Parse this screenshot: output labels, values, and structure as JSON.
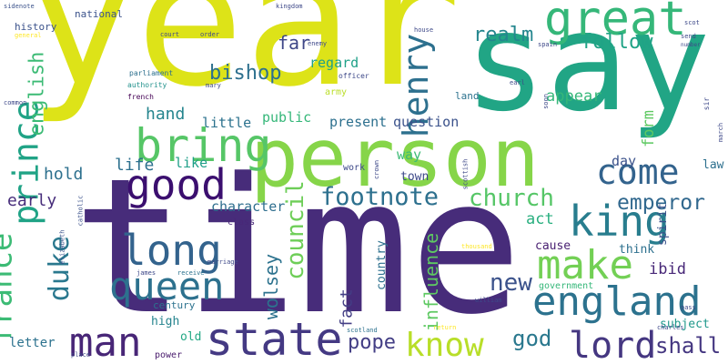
{
  "words": [
    {
      "text": "year",
      "color": "#dde318"
    },
    {
      "text": "say",
      "color": "#21a585"
    },
    {
      "text": "time",
      "color": "#472c7a"
    },
    {
      "text": "person",
      "color": "#86d549"
    },
    {
      "text": "great",
      "color": "#35b779"
    },
    {
      "text": "bring",
      "color": "#56c667"
    },
    {
      "text": "good",
      "color": "#3b0f6f"
    },
    {
      "text": "king",
      "color": "#287d8e"
    },
    {
      "text": "come",
      "color": "#33638d"
    },
    {
      "text": "long",
      "color": "#33638d"
    },
    {
      "text": "queen",
      "color": "#2d718e"
    },
    {
      "text": "prince",
      "color": "#20a386"
    },
    {
      "text": "henry",
      "color": "#2d708e"
    },
    {
      "text": "england",
      "color": "#2c728e"
    },
    {
      "text": "make",
      "color": "#73d055"
    },
    {
      "text": "man",
      "color": "#482677"
    },
    {
      "text": "state",
      "color": "#443983"
    },
    {
      "text": "know",
      "color": "#b8de29"
    },
    {
      "text": "lord",
      "color": "#453781"
    },
    {
      "text": "france",
      "color": "#3cbb75"
    },
    {
      "text": "duke",
      "color": "#2a788e"
    },
    {
      "text": "footnote",
      "color": "#2d708e"
    },
    {
      "text": "church",
      "color": "#56c667"
    },
    {
      "text": "emperor",
      "color": "#31688e"
    },
    {
      "text": "bishop",
      "color": "#2d708e"
    },
    {
      "text": "realm",
      "color": "#24868e"
    },
    {
      "text": "follow",
      "color": "#20a386"
    },
    {
      "text": "english",
      "color": "#3cbb75"
    },
    {
      "text": "council",
      "color": "#6ece58"
    },
    {
      "text": "new",
      "color": "#3b528b"
    },
    {
      "text": "pope",
      "color": "#433e85"
    },
    {
      "text": "god",
      "color": "#2a788e"
    },
    {
      "text": "shall",
      "color": "#453781"
    },
    {
      "text": "hand",
      "color": "#25858e"
    },
    {
      "text": "far",
      "color": "#3f4788"
    },
    {
      "text": "life",
      "color": "#2d708e"
    },
    {
      "text": "hold",
      "color": "#2d708e"
    },
    {
      "text": "early",
      "color": "#472d7b"
    },
    {
      "text": "wolsey",
      "color": "#2c728e"
    },
    {
      "text": "influence",
      "color": "#5ec962"
    },
    {
      "text": "fact",
      "color": "#433e85"
    },
    {
      "text": "act",
      "color": "#29af7f"
    },
    {
      "text": "ibid",
      "color": "#482878"
    },
    {
      "text": "form",
      "color": "#5ec962"
    },
    {
      "text": "appear",
      "color": "#35b779"
    },
    {
      "text": "question",
      "color": "#3b528b"
    },
    {
      "text": "present",
      "color": "#2d708e"
    },
    {
      "text": "public",
      "color": "#35b779"
    },
    {
      "text": "little",
      "color": "#2c728e"
    },
    {
      "text": "regard",
      "color": "#1fa188"
    },
    {
      "text": "english2",
      "color": "#3cbb75"
    },
    {
      "text": "character",
      "color": "#2e6e8e"
    },
    {
      "text": "like",
      "color": "#1f9f88"
    },
    {
      "text": "way",
      "color": "#3cbb75"
    },
    {
      "text": "town",
      "color": "#3e4989"
    },
    {
      "text": "day",
      "color": "#3b528b"
    },
    {
      "text": "law",
      "color": "#2d708e"
    },
    {
      "text": "spirit",
      "color": "#3b528b"
    },
    {
      "text": "subject",
      "color": "#1f988b"
    },
    {
      "text": "letter",
      "color": "#2c728e"
    },
    {
      "text": "high",
      "color": "#25848e"
    },
    {
      "text": "old",
      "color": "#22a884"
    },
    {
      "text": "country",
      "color": "#2d708e"
    },
    {
      "text": "cause",
      "color": "#481f71"
    },
    {
      "text": "think",
      "color": "#2d708e"
    },
    {
      "text": "government",
      "color": "#35b779"
    },
    {
      "text": "history",
      "color": "#3b528b"
    },
    {
      "text": "national",
      "color": "#3b528b"
    },
    {
      "text": "land",
      "color": "#2c728e"
    },
    {
      "text": "army",
      "color": "#bade28"
    },
    {
      "text": "officer",
      "color": "#3e4989"
    },
    {
      "text": "authority",
      "color": "#21918c"
    },
    {
      "text": "french",
      "color": "#440154"
    },
    {
      "text": "parliament",
      "color": "#2d708e"
    },
    {
      "text": "century",
      "color": "#2c728e"
    },
    {
      "text": "class",
      "color": "#482878"
    },
    {
      "text": "work",
      "color": "#3e4989"
    },
    {
      "text": "power",
      "color": "#481a6c"
    },
    {
      "text": "general",
      "color": "#fde725"
    },
    {
      "text": "sidenote",
      "color": "#3b528b"
    },
    {
      "text": "catholic",
      "color": "#3b528b"
    },
    {
      "text": "elizabeth",
      "color": "#3b528b"
    },
    {
      "text": "marriage",
      "color": "#3e4989"
    },
    {
      "text": "receive",
      "color": "#2c728e"
    },
    {
      "text": "james",
      "color": "#3e4989"
    },
    {
      "text": "scottish",
      "color": "#3e4989"
    },
    {
      "text": "crown",
      "color": "#3e4989"
    },
    {
      "text": "scotland",
      "color": "#2c728e"
    },
    {
      "text": "thousand",
      "color": "#fde725"
    },
    {
      "text": "charles",
      "color": "#3e4989"
    },
    {
      "text": "pass",
      "color": "#3e4989"
    },
    {
      "text": "march",
      "color": "#3e4989"
    },
    {
      "text": "sir",
      "color": "#3e4989"
    },
    {
      "text": "send",
      "color": "#3e4989"
    },
    {
      "text": "number",
      "color": "#3e4989"
    },
    {
      "text": "spain",
      "color": "#3e4989"
    },
    {
      "text": "scot",
      "color": "#3e4989"
    },
    {
      "text": "kingdom",
      "color": "#3e4989"
    },
    {
      "text": "house",
      "color": "#3e4989"
    },
    {
      "text": "enemy",
      "color": "#3e4989"
    },
    {
      "text": "order",
      "color": "#3e4989"
    },
    {
      "text": "court",
      "color": "#3e4989"
    },
    {
      "text": "mary",
      "color": "#3e4989"
    },
    {
      "text": "common",
      "color": "#3e4989"
    },
    {
      "text": "place",
      "color": "#3e4989"
    },
    {
      "text": "soon",
      "color": "#3e4989"
    },
    {
      "text": "earl",
      "color": "#3e4989"
    },
    {
      "text": "return",
      "color": "#fde725"
    },
    {
      "text": "william",
      "color": "#3e4989"
    }
  ]
}
